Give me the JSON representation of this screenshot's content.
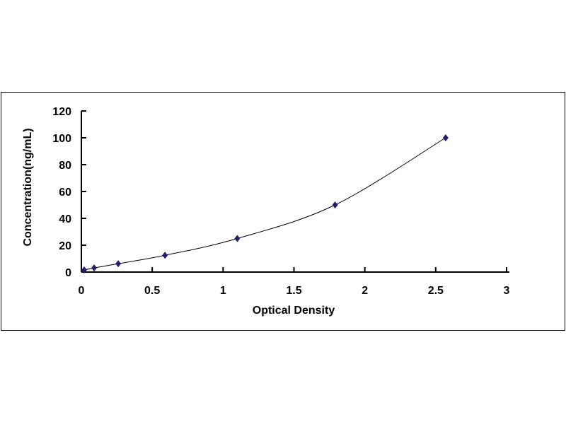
{
  "chart_data": {
    "type": "scatter",
    "title": "",
    "xlabel": "Optical Density",
    "ylabel": "Concentration(ng/mL)",
    "xlim": [
      0,
      3
    ],
    "ylim": [
      0,
      120
    ],
    "xticks": [
      0,
      0.5,
      1,
      1.5,
      2,
      2.5,
      3
    ],
    "xtick_labels": [
      "0",
      "0.5",
      "1",
      "1.5",
      "2",
      "2.5",
      "3"
    ],
    "yticks": [
      0,
      20,
      40,
      60,
      80,
      100,
      120
    ],
    "ytick_labels": [
      "0",
      "20",
      "40",
      "60",
      "80",
      "100",
      "120"
    ],
    "grid": false,
    "legend": "none",
    "series": [
      {
        "x": [
          0.02,
          0.09,
          0.26,
          0.59,
          1.1,
          1.79,
          2.57
        ],
        "y": [
          1.56,
          3.12,
          6.25,
          12.5,
          25,
          50,
          100
        ],
        "marker": "diamond",
        "color": "#1f1f6e",
        "trendline": "smooth"
      }
    ]
  }
}
